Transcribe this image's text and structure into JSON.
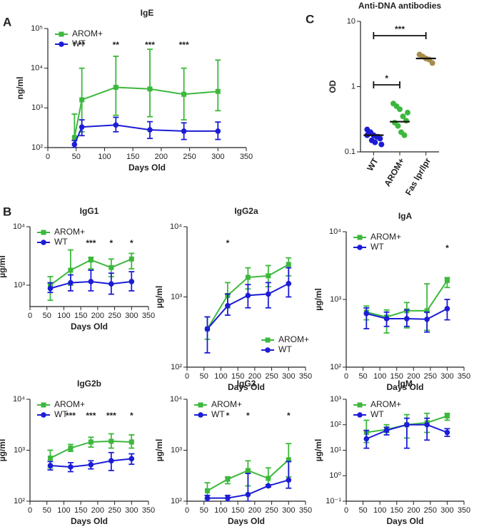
{
  "chart_data": [
    {
      "type": "line",
      "panel_label": "A",
      "title": "IgE",
      "x_label": "Days Old",
      "y_label": "ng/ml",
      "yscale": "log",
      "x": [
        47,
        60,
        120,
        180,
        240,
        300
      ],
      "xlim": [
        0,
        350
      ],
      "xticks": [
        0,
        50,
        100,
        150,
        200,
        250,
        300,
        350
      ],
      "ylim": [
        100,
        100000
      ],
      "yticks": [
        {
          "value": 100,
          "label": "10²"
        },
        {
          "value": 1000,
          "label": "10³"
        },
        {
          "value": 10000,
          "label": "10⁴"
        },
        {
          "value": 100000,
          "label": "10⁵"
        }
      ],
      "legend": "upper left",
      "series": [
        {
          "name": "AROM+",
          "color": "#3cb83c",
          "marker": "square",
          "values": [
            180,
            1600,
            3300,
            3000,
            2200,
            2600
          ],
          "lower": [
            100,
            250,
            650,
            600,
            500,
            850
          ],
          "upper": [
            700,
            10000,
            20000,
            30000,
            10000,
            16000
          ]
        },
        {
          "name": "WT",
          "color": "#1c1cd6",
          "marker": "circle",
          "values": [
            120,
            330,
            370,
            280,
            260,
            260
          ],
          "lower": [
            100,
            200,
            250,
            170,
            160,
            160
          ],
          "upper": [
            150,
            500,
            580,
            450,
            420,
            440
          ]
        }
      ],
      "annotations": [
        {
          "x": 47,
          "text": "*"
        },
        {
          "x": 60,
          "text": "**"
        },
        {
          "x": 120,
          "text": "**"
        },
        {
          "x": 180,
          "text": "***"
        },
        {
          "x": 240,
          "text": "***"
        }
      ]
    },
    {
      "type": "strip",
      "panel_label": "C",
      "title": "Anti-DNA antibodies",
      "y_label": "OD",
      "yscale": "log",
      "categories": [
        "WT",
        "AROM+",
        "Fas lpr/lpr"
      ],
      "colors": [
        "#1c1cd6",
        "#3cb83c",
        "#a88c4c"
      ],
      "points": [
        [
          0.22,
          0.2,
          0.18,
          0.17,
          0.16,
          0.19,
          0.15,
          0.14,
          0.17,
          0.13,
          0.18,
          0.2
        ],
        [
          0.55,
          0.5,
          0.45,
          0.35,
          0.3,
          0.28,
          0.25,
          0.2,
          0.18,
          0.4
        ],
        [
          3.1,
          2.9,
          2.7,
          2.6,
          2.3
        ]
      ],
      "medians": [
        0.18,
        0.29,
        2.7
      ],
      "ylim": [
        0.1,
        10
      ],
      "yticks": [
        0.1,
        1,
        10
      ],
      "annotations": [
        {
          "text": "***"
        },
        {
          "text": "*"
        }
      ]
    },
    {
      "type": "line",
      "panel_label": "B",
      "title": "IgG1",
      "x_label": "Days Old",
      "y_label": "µg/ml",
      "yscale": "log",
      "x": [
        60,
        120,
        180,
        240,
        300
      ],
      "xlim": [
        0,
        350
      ],
      "xticks": [
        0,
        50,
        100,
        150,
        200,
        250,
        300,
        350
      ],
      "ylim": [
        430,
        10000
      ],
      "yticks": [
        {
          "value": 1000,
          "label": "10³"
        },
        {
          "value": 10000,
          "label": "10⁴"
        }
      ],
      "legend": "upper left",
      "series": [
        {
          "name": "AROM+",
          "color": "#3cb83c",
          "marker": "square",
          "values": [
            1000,
            1800,
            2700,
            2000,
            2800
          ],
          "lower": [
            550,
            1000,
            1900,
            1400,
            1900
          ],
          "upper": [
            1400,
            4000,
            3000,
            2800,
            3500
          ]
        },
        {
          "name": "WT",
          "color": "#1c1cd6",
          "marker": "circle",
          "values": [
            880,
            1100,
            1150,
            1050,
            1150
          ],
          "lower": [
            750,
            800,
            800,
            700,
            800
          ],
          "upper": [
            1100,
            1500,
            1800,
            1600,
            1700
          ]
        }
      ],
      "annotations": [
        {
          "x": 180,
          "text": "***"
        },
        {
          "x": 240,
          "text": "*"
        },
        {
          "x": 300,
          "text": "*"
        }
      ]
    },
    {
      "type": "line",
      "title": "IgG2a",
      "x_label": "Days Old",
      "y_label": "µg/ml",
      "yscale": "log",
      "x": [
        60,
        120,
        180,
        240,
        300
      ],
      "xlim": [
        0,
        350
      ],
      "xticks": [
        0,
        50,
        100,
        150,
        200,
        250,
        300,
        350
      ],
      "ylim": [
        100,
        10000
      ],
      "yticks": [
        {
          "value": 100,
          "label": "10²"
        },
        {
          "value": 1000,
          "label": "10³"
        },
        {
          "value": 10000,
          "label": "10⁴"
        }
      ],
      "legend": "lower right",
      "series": [
        {
          "name": "AROM+",
          "color": "#3cb83c",
          "marker": "square",
          "values": [
            350,
            1050,
            1900,
            2000,
            2900
          ],
          "lower": [
            250,
            700,
            1300,
            1400,
            2000
          ],
          "upper": [
            520,
            1600,
            2600,
            2800,
            3600
          ]
        },
        {
          "name": "WT",
          "color": "#1c1cd6",
          "marker": "circle",
          "values": [
            350,
            750,
            1050,
            1100,
            1550
          ],
          "lower": [
            160,
            550,
            700,
            700,
            1000
          ],
          "upper": [
            520,
            1100,
            1500,
            1600,
            2600
          ]
        }
      ],
      "annotations": [
        {
          "x": 120,
          "text": "*"
        }
      ]
    },
    {
      "type": "line",
      "title": "IgA",
      "x_label": "Days Old",
      "y_label": "µg/ml",
      "yscale": "log",
      "x": [
        60,
        120,
        180,
        240,
        300
      ],
      "xlim": [
        0,
        350
      ],
      "xticks": [
        0,
        50,
        100,
        150,
        200,
        250,
        300,
        350
      ],
      "ylim": [
        100,
        10000
      ],
      "yticks": [
        {
          "value": 100,
          "label": "10²"
        },
        {
          "value": 1000,
          "label": "10³"
        },
        {
          "value": 10000,
          "label": "10⁴"
        }
      ],
      "legend": "upper left",
      "series": [
        {
          "name": "AROM+",
          "color": "#3cb83c",
          "marker": "square",
          "values": [
            650,
            550,
            680,
            680,
            1900
          ],
          "lower": [
            500,
            320,
            380,
            350,
            1500
          ],
          "upper": [
            800,
            700,
            900,
            1700,
            2100
          ]
        },
        {
          "name": "WT",
          "color": "#1c1cd6",
          "marker": "circle",
          "values": [
            620,
            520,
            520,
            510,
            730
          ],
          "lower": [
            370,
            400,
            400,
            330,
            500
          ],
          "upper": [
            750,
            650,
            700,
            650,
            1000
          ]
        }
      ],
      "annotations": [
        {
          "x": 300,
          "text": "*"
        }
      ]
    },
    {
      "type": "line",
      "title": "IgG2b",
      "x_label": "Days Old",
      "y_label": "µg/ml",
      "yscale": "log",
      "x": [
        60,
        120,
        180,
        240,
        300
      ],
      "xlim": [
        0,
        350
      ],
      "xticks": [
        0,
        50,
        100,
        150,
        200,
        250,
        300,
        350
      ],
      "ylim": [
        100,
        10000
      ],
      "yticks": [
        {
          "value": 100,
          "label": "10²"
        },
        {
          "value": 1000,
          "label": "10³"
        },
        {
          "value": 10000,
          "label": "10⁴"
        }
      ],
      "legend": "upper left",
      "series": [
        {
          "name": "AROM+",
          "color": "#3cb83c",
          "marker": "square",
          "values": [
            700,
            1100,
            1450,
            1500,
            1450
          ],
          "lower": [
            450,
            950,
            1150,
            1100,
            1100
          ],
          "upper": [
            1000,
            1300,
            1800,
            2100,
            2000
          ]
        },
        {
          "name": "WT",
          "color": "#1c1cd6",
          "marker": "circle",
          "values": [
            500,
            470,
            520,
            620,
            680
          ],
          "lower": [
            410,
            380,
            430,
            400,
            530
          ],
          "upper": [
            600,
            570,
            620,
            900,
            850
          ]
        }
      ],
      "annotations": [
        {
          "x": 120,
          "text": "***"
        },
        {
          "x": 180,
          "text": "***"
        },
        {
          "x": 240,
          "text": "***"
        },
        {
          "x": 300,
          "text": "*"
        }
      ]
    },
    {
      "type": "line",
      "title": "IgG3",
      "x_label": "Days Old",
      "y_label": "µg/ml",
      "yscale": "log",
      "x": [
        60,
        120,
        180,
        240,
        300
      ],
      "xlim": [
        0,
        350
      ],
      "xticks": [
        0,
        50,
        100,
        150,
        200,
        250,
        300,
        350
      ],
      "ylim": [
        100,
        10000
      ],
      "yticks": [
        {
          "value": 100,
          "label": "10²"
        },
        {
          "value": 1000,
          "label": "10³"
        },
        {
          "value": 10000,
          "label": "10⁴"
        }
      ],
      "legend": "upper left",
      "series": [
        {
          "name": "AROM+",
          "color": "#3cb83c",
          "marker": "square",
          "values": [
            160,
            270,
            400,
            280,
            650
          ],
          "lower": [
            110,
            220,
            200,
            190,
            300
          ],
          "upper": [
            230,
            300,
            620,
            450,
            1350
          ]
        },
        {
          "name": "WT",
          "color": "#1c1cd6",
          "marker": "circle",
          "values": [
            115,
            115,
            135,
            200,
            260
          ],
          "lower": [
            100,
            100,
            100,
            190,
            180
          ],
          "upper": [
            130,
            130,
            350,
            210,
            600
          ]
        }
      ],
      "annotations": [
        {
          "x": 120,
          "text": "*"
        },
        {
          "x": 180,
          "text": "*"
        },
        {
          "x": 300,
          "text": "*"
        }
      ]
    },
    {
      "type": "line",
      "title": "IgM",
      "x_label": "Days Old",
      "y_label": "µg/ml",
      "yscale": "log",
      "x": [
        60,
        120,
        180,
        240,
        300
      ],
      "xlim": [
        0,
        350
      ],
      "xticks": [
        0,
        50,
        100,
        150,
        200,
        250,
        300,
        350
      ],
      "ylim": [
        0.1,
        1000
      ],
      "yticks": [
        {
          "value": 0.1,
          "label": "10⁻¹"
        },
        {
          "value": 1,
          "label": "10⁰"
        },
        {
          "value": 10,
          "label": "10¹"
        },
        {
          "value": 100,
          "label": "10²"
        },
        {
          "value": 1000,
          "label": "10³"
        }
      ],
      "legend": "upper left",
      "series": [
        {
          "name": "AROM+",
          "color": "#3cb83c",
          "marker": "square",
          "values": [
            50,
            65,
            100,
            120,
            220
          ],
          "lower": [
            20,
            50,
            30,
            50,
            150
          ],
          "upper": [
            150,
            100,
            250,
            280,
            280
          ]
        },
        {
          "name": "WT",
          "color": "#1c1cd6",
          "marker": "circle",
          "values": [
            28,
            60,
            100,
            100,
            50
          ],
          "lower": [
            12,
            40,
            12,
            25,
            35
          ],
          "upper": [
            60,
            80,
            180,
            180,
            70
          ]
        }
      ],
      "annotations": []
    }
  ]
}
